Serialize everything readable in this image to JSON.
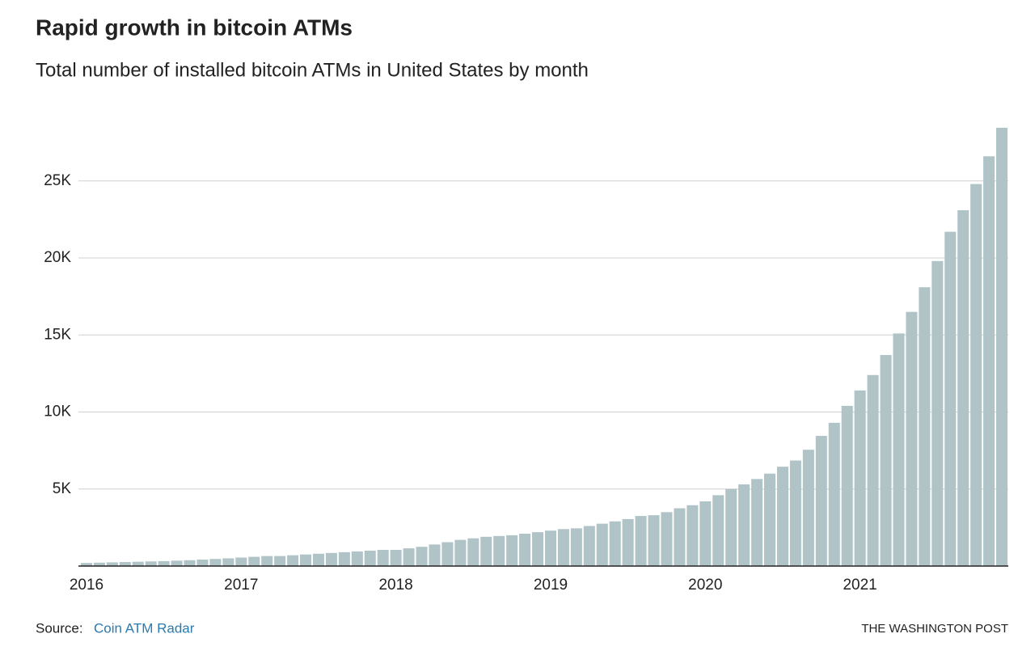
{
  "chart_data": {
    "type": "bar",
    "title": "Rapid growth in bitcoin ATMs",
    "subtitle": "Total number of installed bitcoin ATMs in United States by month",
    "categories": [
      "2016",
      null,
      null,
      null,
      null,
      null,
      null,
      null,
      null,
      null,
      null,
      null,
      "2017",
      null,
      null,
      null,
      null,
      null,
      null,
      null,
      null,
      null,
      null,
      null,
      "2018",
      null,
      null,
      null,
      null,
      null,
      null,
      null,
      null,
      null,
      null,
      null,
      "2019",
      null,
      null,
      null,
      null,
      null,
      null,
      null,
      null,
      null,
      null,
      null,
      "2020",
      null,
      null,
      null,
      null,
      null,
      null,
      null,
      null,
      null,
      null,
      null,
      "2021",
      null,
      null,
      null,
      null,
      null,
      null,
      null,
      null,
      null,
      null,
      null
    ],
    "values": [
      200,
      220,
      240,
      260,
      280,
      300,
      320,
      350,
      380,
      420,
      460,
      500,
      550,
      600,
      650,
      650,
      700,
      750,
      800,
      850,
      900,
      950,
      1000,
      1050,
      1050,
      1150,
      1250,
      1400,
      1550,
      1700,
      1800,
      1900,
      1950,
      2000,
      2100,
      2200,
      2300,
      2400,
      2450,
      2600,
      2750,
      2900,
      3050,
      3250,
      3300,
      3500,
      3750,
      3950,
      4200,
      4600,
      5000,
      5300,
      5650,
      6000,
      6450,
      6850,
      7550,
      8450,
      9300,
      10400,
      11400,
      12400,
      13700,
      15100,
      16500,
      18100,
      19800,
      21700,
      23100,
      24800,
      26600,
      28450
    ],
    "color": "#b0c4c8",
    "ylim": [
      0,
      30000
    ],
    "yticks": [
      {
        "value": 5000,
        "label": "5K"
      },
      {
        "value": 10000,
        "label": "10K"
      },
      {
        "value": 15000,
        "label": "15K"
      },
      {
        "value": 20000,
        "label": "20K"
      },
      {
        "value": 25000,
        "label": "25K"
      }
    ],
    "grid": true,
    "source_label": "Source:",
    "source_link": "Coin ATM Radar",
    "credit": "THE WASHINGTON POST"
  }
}
